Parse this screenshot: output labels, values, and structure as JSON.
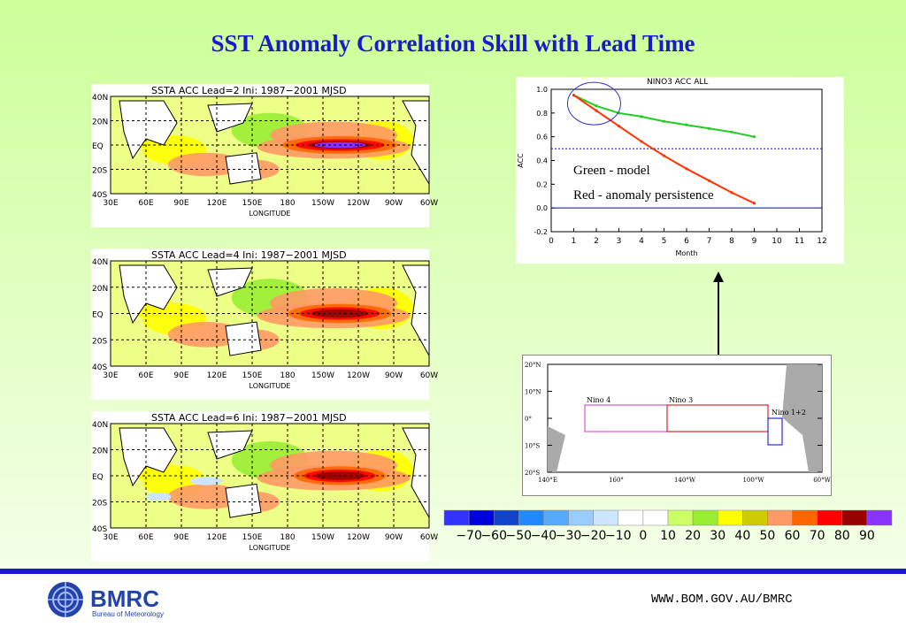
{
  "title": "SST Anomaly Correlation Skill with Lead Time",
  "maps": [
    {
      "title": "SSTA ACC Lead=2 Ini: 1987−2001 MJSD"
    },
    {
      "title": "SSTA ACC Lead=4 Ini: 1987−2001 MJSD"
    },
    {
      "title": "SSTA ACC Lead=6 Ini: 1987−2001 MJSD"
    }
  ],
  "map_axes": {
    "lat_ticks": [
      "40N",
      "20N",
      "EQ",
      "20S",
      "40S"
    ],
    "lon_ticks": [
      "30E",
      "60E",
      "90E",
      "120E",
      "150E",
      "180",
      "150W",
      "120W",
      "90W",
      "60W"
    ],
    "xlabel": "LONGITUDE"
  },
  "colorbar": {
    "labels": [
      "−70",
      "−60",
      "−50",
      "−40",
      "−30",
      "−20",
      "−10",
      "0",
      "10",
      "20",
      "30",
      "40",
      "50",
      "60",
      "70",
      "80",
      "90"
    ],
    "colors": [
      "#3333ff",
      "#0000dd",
      "#1144cc",
      "#2288ff",
      "#55aaff",
      "#99ccff",
      "#cce6ff",
      "#ffffff",
      "#ffffff",
      "#ccff66",
      "#99ee33",
      "#ffff00",
      "#cccc00",
      "#ff9966",
      "#ff6600",
      "#ff0000",
      "#990000",
      "#8833ff"
    ]
  },
  "line_chart": {
    "title": "NINO3 ACC ALL",
    "annotation_green": "Green - model",
    "annotation_red": "Red - anomaly persistence"
  },
  "chart_data": {
    "type": "line",
    "title": "NINO3 ACC ALL",
    "xlabel": "Month",
    "ylabel": "ACC",
    "xlim": [
      0,
      12
    ],
    "ylim": [
      -0.2,
      1.0
    ],
    "xticks": [
      0,
      1,
      2,
      3,
      4,
      5,
      6,
      7,
      8,
      9,
      10,
      11,
      12
    ],
    "yticks": [
      -0.2,
      0.0,
      0.2,
      0.4,
      0.6,
      0.8,
      1.0
    ],
    "x": [
      1,
      2,
      3,
      4,
      5,
      6,
      7,
      8,
      9
    ],
    "series": [
      {
        "name": "Green - model",
        "color": "#22cc22",
        "values": [
          0.95,
          0.86,
          0.8,
          0.77,
          0.73,
          0.7,
          0.67,
          0.64,
          0.6
        ]
      },
      {
        "name": "Red - anomaly persistence",
        "color": "#ff3300",
        "values": [
          0.95,
          0.82,
          0.69,
          0.56,
          0.44,
          0.33,
          0.23,
          0.13,
          0.04
        ]
      }
    ],
    "reference_lines": [
      {
        "y": 0.0,
        "color": "#0000cc",
        "style": "solid"
      },
      {
        "y": 0.5,
        "color": "#0000cc",
        "style": "dotted"
      }
    ]
  },
  "nino_map": {
    "lat_ticks": [
      "20°N",
      "10°N",
      "0°",
      "10°S",
      "20°S"
    ],
    "lon_ticks": [
      "140°E",
      "160°",
      "140°W",
      "100°W",
      "60°W"
    ],
    "regions": [
      {
        "name": "Nino 4",
        "color": "#cc33cc"
      },
      {
        "name": "Nino 3",
        "color": "#cc0000"
      },
      {
        "name": "Nino 1+2",
        "color": "#0000cc"
      }
    ]
  },
  "footer": {
    "logo_text": "BMRC",
    "logo_sub": "Bureau of Meteorology",
    "url": "WWW.BOM.GOV.AU/BMRC"
  },
  "colors": {
    "title": "#1a1acc",
    "footer_bar": "#1a1acc"
  }
}
